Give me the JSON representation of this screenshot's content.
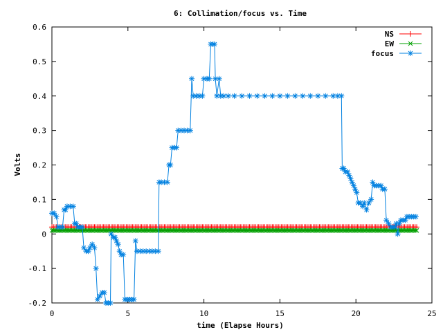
{
  "chart_data": {
    "type": "line",
    "title": "6: Collimation/focus vs. Time",
    "xlabel": "time (Elapse Hours)",
    "ylabel": "Volts",
    "xlim": [
      0,
      25
    ],
    "ylim": [
      -0.2,
      0.6
    ],
    "x_ticks": [
      0,
      5,
      10,
      15,
      20,
      25
    ],
    "x_tick_labels": [
      "0",
      "5",
      "10",
      "15",
      "20",
      "25"
    ],
    "y_ticks": [
      -0.2,
      -0.1,
      0,
      0.1,
      0.2,
      0.3,
      0.4,
      0.5,
      0.6
    ],
    "y_tick_labels": [
      "-0.2",
      "-0.1",
      "0",
      "0.1",
      "0.2",
      "0.3",
      "0.4",
      "0.5",
      "0.6"
    ],
    "grid": false,
    "legend_position": "top-right",
    "series": [
      {
        "name": "NS",
        "color": "#ff0000",
        "marker": "plus",
        "x": [
          0,
          24
        ],
        "y": [
          0.02,
          0.02
        ],
        "constant": true
      },
      {
        "name": "EW",
        "color": "#00a000",
        "marker": "cross",
        "x": [
          0,
          24
        ],
        "y": [
          0.01,
          0.01
        ],
        "constant": true
      },
      {
        "name": "focus",
        "color": "#0080e0",
        "marker": "star",
        "points": [
          [
            0.0,
            0.06
          ],
          [
            0.15,
            0.06
          ],
          [
            0.3,
            0.05
          ],
          [
            0.4,
            0.02
          ],
          [
            0.5,
            0.02
          ],
          [
            0.7,
            0.02
          ],
          [
            0.8,
            0.07
          ],
          [
            0.9,
            0.07
          ],
          [
            1.0,
            0.08
          ],
          [
            1.2,
            0.08
          ],
          [
            1.4,
            0.08
          ],
          [
            1.5,
            0.03
          ],
          [
            1.6,
            0.03
          ],
          [
            1.7,
            0.02
          ],
          [
            1.85,
            0.02
          ],
          [
            2.0,
            0.02
          ],
          [
            2.1,
            -0.04
          ],
          [
            2.25,
            -0.05
          ],
          [
            2.4,
            -0.05
          ],
          [
            2.5,
            -0.04
          ],
          [
            2.65,
            -0.03
          ],
          [
            2.8,
            -0.04
          ],
          [
            2.9,
            -0.1
          ],
          [
            3.0,
            -0.19
          ],
          [
            3.15,
            -0.18
          ],
          [
            3.3,
            -0.17
          ],
          [
            3.45,
            -0.17
          ],
          [
            3.55,
            -0.2
          ],
          [
            3.7,
            -0.2
          ],
          [
            3.85,
            -0.2
          ],
          [
            3.9,
            0.0
          ],
          [
            4.05,
            -0.01
          ],
          [
            4.15,
            -0.01
          ],
          [
            4.25,
            -0.02
          ],
          [
            4.35,
            -0.03
          ],
          [
            4.45,
            -0.05
          ],
          [
            4.55,
            -0.06
          ],
          [
            4.7,
            -0.06
          ],
          [
            4.8,
            -0.19
          ],
          [
            4.95,
            -0.19
          ],
          [
            5.1,
            -0.19
          ],
          [
            5.25,
            -0.19
          ],
          [
            5.4,
            -0.19
          ],
          [
            5.5,
            -0.02
          ],
          [
            5.6,
            -0.05
          ],
          [
            5.8,
            -0.05
          ],
          [
            6.0,
            -0.05
          ],
          [
            6.2,
            -0.05
          ],
          [
            6.4,
            -0.05
          ],
          [
            6.6,
            -0.05
          ],
          [
            6.8,
            -0.05
          ],
          [
            7.0,
            -0.05
          ],
          [
            7.05,
            0.15
          ],
          [
            7.2,
            0.15
          ],
          [
            7.4,
            0.15
          ],
          [
            7.6,
            0.15
          ],
          [
            7.7,
            0.2
          ],
          [
            7.8,
            0.2
          ],
          [
            7.9,
            0.25
          ],
          [
            8.05,
            0.25
          ],
          [
            8.2,
            0.25
          ],
          [
            8.3,
            0.3
          ],
          [
            8.5,
            0.3
          ],
          [
            8.7,
            0.3
          ],
          [
            8.9,
            0.3
          ],
          [
            9.1,
            0.3
          ],
          [
            9.2,
            0.45
          ],
          [
            9.3,
            0.4
          ],
          [
            9.5,
            0.4
          ],
          [
            9.7,
            0.4
          ],
          [
            9.9,
            0.4
          ],
          [
            10.0,
            0.45
          ],
          [
            10.2,
            0.45
          ],
          [
            10.35,
            0.45
          ],
          [
            10.45,
            0.55
          ],
          [
            10.6,
            0.55
          ],
          [
            10.7,
            0.55
          ],
          [
            10.75,
            0.45
          ],
          [
            10.85,
            0.4
          ],
          [
            11.0,
            0.45
          ],
          [
            11.1,
            0.4
          ],
          [
            11.3,
            0.4
          ],
          [
            11.6,
            0.4
          ],
          [
            12.0,
            0.4
          ],
          [
            12.5,
            0.4
          ],
          [
            13.0,
            0.4
          ],
          [
            13.5,
            0.4
          ],
          [
            14.0,
            0.4
          ],
          [
            14.5,
            0.4
          ],
          [
            15.0,
            0.4
          ],
          [
            15.5,
            0.4
          ],
          [
            16.0,
            0.4
          ],
          [
            16.5,
            0.4
          ],
          [
            17.0,
            0.4
          ],
          [
            17.5,
            0.4
          ],
          [
            18.0,
            0.4
          ],
          [
            18.5,
            0.4
          ],
          [
            18.8,
            0.4
          ],
          [
            19.05,
            0.4
          ],
          [
            19.1,
            0.19
          ],
          [
            19.2,
            0.19
          ],
          [
            19.3,
            0.18
          ],
          [
            19.45,
            0.18
          ],
          [
            19.55,
            0.17
          ],
          [
            19.65,
            0.16
          ],
          [
            19.75,
            0.15
          ],
          [
            19.85,
            0.14
          ],
          [
            19.95,
            0.13
          ],
          [
            20.05,
            0.12
          ],
          [
            20.15,
            0.09
          ],
          [
            20.3,
            0.09
          ],
          [
            20.45,
            0.08
          ],
          [
            20.55,
            0.09
          ],
          [
            20.7,
            0.07
          ],
          [
            20.85,
            0.09
          ],
          [
            21.0,
            0.1
          ],
          [
            21.1,
            0.15
          ],
          [
            21.2,
            0.14
          ],
          [
            21.35,
            0.14
          ],
          [
            21.5,
            0.14
          ],
          [
            21.65,
            0.14
          ],
          [
            21.75,
            0.13
          ],
          [
            21.9,
            0.13
          ],
          [
            22.0,
            0.04
          ],
          [
            22.15,
            0.03
          ],
          [
            22.3,
            0.02
          ],
          [
            22.45,
            0.02
          ],
          [
            22.55,
            0.02
          ],
          [
            22.65,
            0.03
          ],
          [
            22.75,
            0.0
          ],
          [
            22.85,
            0.03
          ],
          [
            22.95,
            0.04
          ],
          [
            23.1,
            0.04
          ],
          [
            23.25,
            0.04
          ],
          [
            23.35,
            0.05
          ],
          [
            23.5,
            0.05
          ],
          [
            23.65,
            0.05
          ],
          [
            23.8,
            0.05
          ],
          [
            23.95,
            0.05
          ]
        ]
      }
    ]
  }
}
